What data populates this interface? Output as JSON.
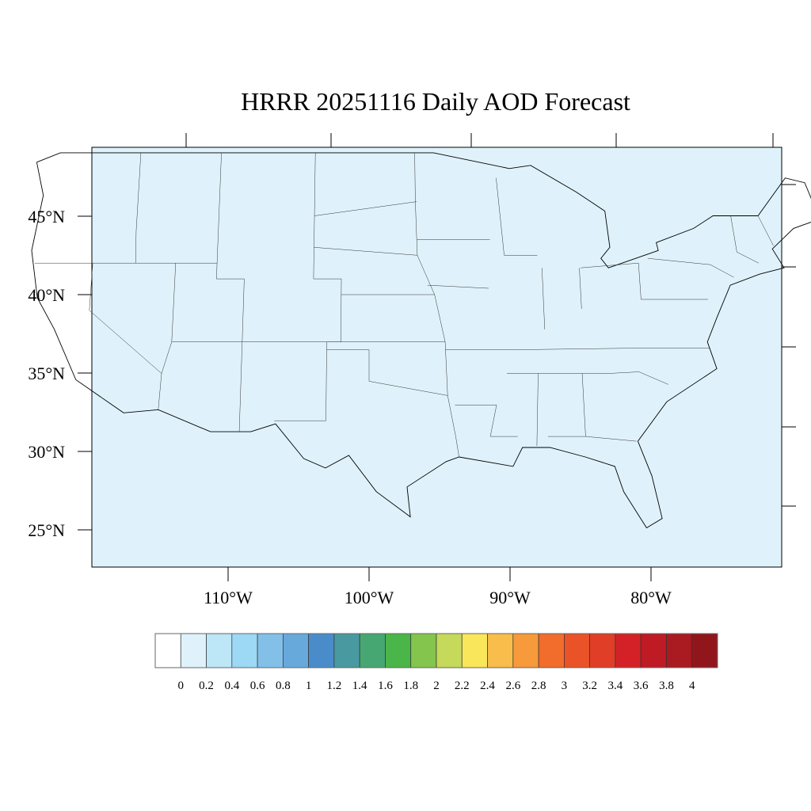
{
  "title": "HRRR 20251116 Daily AOD Forecast",
  "map": {
    "projection": "lambert-conformal",
    "region": "CONUS",
    "field_color": "#dff2fb",
    "lon_labels": [
      "110°W",
      "100°W",
      "90°W",
      "80°W"
    ],
    "lat_labels": [
      "45°N",
      "40°N",
      "35°N",
      "30°N",
      "25°N"
    ]
  },
  "colorbar": {
    "labels": [
      "0",
      "0.2",
      "0.4",
      "0.6",
      "0.8",
      "1",
      "1.2",
      "1.4",
      "1.6",
      "1.8",
      "2",
      "2.2",
      "2.4",
      "2.6",
      "2.8",
      "3",
      "3.2",
      "3.4",
      "3.6",
      "3.8",
      "4"
    ],
    "colors": [
      "#ffffff",
      "#dff2fb",
      "#bde6f7",
      "#9dd8f5",
      "#83c0e8",
      "#68a9dc",
      "#4a8cc9",
      "#489aa0",
      "#47a773",
      "#4ab548",
      "#84c54d",
      "#c5d95a",
      "#f9e65a",
      "#f8bd4a",
      "#f69a3c",
      "#f26c2b",
      "#ea5228",
      "#e03e27",
      "#d42128",
      "#be1b24",
      "#a91a21",
      "#91161b"
    ]
  }
}
